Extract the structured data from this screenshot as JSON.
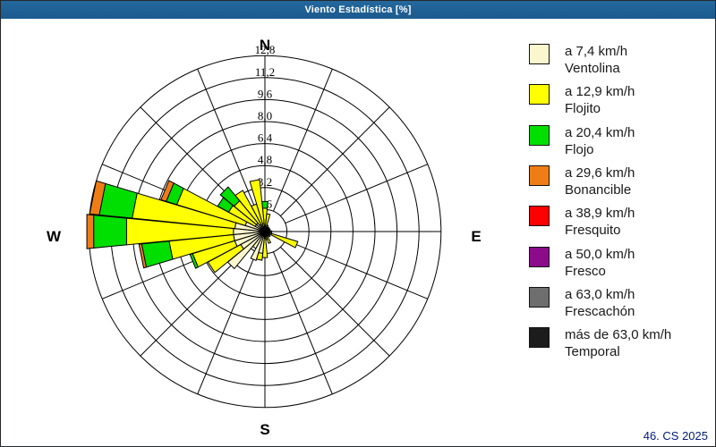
{
  "window": {
    "title": "Viento Estadística [%]",
    "footer": "46. CS 2025"
  },
  "compass": {
    "n": "N",
    "e": "E",
    "s": "S",
    "w": "W"
  },
  "legend": {
    "items": [
      {
        "speed": "a 7,4 km/h",
        "name": "Ventolina",
        "color": "#FAF7CE"
      },
      {
        "speed": "a 12,9 km/h",
        "name": "Flojito",
        "color": "#FFFF00"
      },
      {
        "speed": "a 20,4 km/h",
        "name": "Flojo",
        "color": "#00DF00"
      },
      {
        "speed": "a 29,6 km/h",
        "name": "Bonancible",
        "color": "#EF7D15"
      },
      {
        "speed": "a 38,9 km/h",
        "name": "Fresquito",
        "color": "#FF0000"
      },
      {
        "speed": "a 50,0 km/h",
        "name": "Fresco",
        "color": "#8B0B8B"
      },
      {
        "speed": "a 63,0 km/h",
        "name": "Frescachón",
        "color": "#6E6E6E"
      },
      {
        "speed": "más de 63,0 km/h",
        "name": "Temporal",
        "color": "#1C1C1C"
      }
    ]
  },
  "chart_data": {
    "type": "bar",
    "polar": true,
    "title": "Viento Estadística [%]",
    "units": "%",
    "grid": true,
    "legend_position": "right",
    "sector_width_deg": 11.25,
    "ring_values": [
      1.6,
      3.2,
      4.8,
      6.4,
      8.0,
      9.6,
      11.2,
      12.8
    ],
    "ring_labels": [
      "1,6",
      "3,2",
      "4,8",
      "6,4",
      "8,0",
      "9,6",
      "11,2",
      "12,8"
    ],
    "radial_max": 12.8,
    "grid_spokes": 16,
    "directions_deg": [
      0,
      11.25,
      22.5,
      33.75,
      45,
      56.25,
      67.5,
      78.75,
      90,
      101.25,
      112.5,
      123.75,
      135,
      146.25,
      157.5,
      168.75,
      180,
      191.25,
      202.5,
      213.75,
      225,
      236.25,
      247.5,
      258.75,
      270,
      281.25,
      292.5,
      303.75,
      315,
      326.25,
      337.5,
      348.75
    ],
    "direction_names": [
      "N",
      "NbE",
      "NNE",
      "NEbN",
      "NE",
      "NEbE",
      "ENE",
      "EbN",
      "E",
      "EbS",
      "ESE",
      "SEbE",
      "SE",
      "SEbS",
      "SSE",
      "SbE",
      "S",
      "SbW",
      "SSW",
      "SWbS",
      "SW",
      "SWbW",
      "WSW",
      "WbS",
      "W",
      "WbN",
      "WNW",
      "NWbW",
      "NW",
      "NWbN",
      "NNW",
      "NbW"
    ],
    "series": [
      {
        "name": "Ventolina",
        "speed_label": "a 7,4 km/h",
        "color": "#FAF7CE",
        "values": [
          0,
          0,
          0.2,
          0.2,
          0.2,
          0.3,
          0.4,
          0.4,
          0.3,
          0.3,
          0.5,
          0.4,
          0.3,
          0.4,
          0.4,
          0.3,
          0.5,
          1.6,
          2.2,
          1.4,
          3.5,
          2.0,
          2.3,
          2.3,
          2.3,
          2.2,
          1.5,
          0.8,
          0.8,
          0.6,
          0.5,
          0.6
        ]
      },
      {
        "name": "Flojito",
        "speed_label": "a 12,9 km/h",
        "color": "#FFFF00",
        "values": [
          1.7,
          1.3,
          0.3,
          0.2,
          0.2,
          0,
          0,
          0,
          0.2,
          0.2,
          2.0,
          0,
          0.2,
          0,
          0.5,
          0.3,
          1.4,
          0.5,
          0,
          0,
          0,
          2.7,
          3.2,
          4.7,
          7.8,
          7.5,
          5.2,
          2.2,
          2.1,
          2.8,
          1.6,
          3.2
        ]
      },
      {
        "name": "Flojo",
        "speed_label": "a 20,4 km/h",
        "color": "#00DF00",
        "values": [
          0.5,
          0,
          0,
          0,
          0,
          0,
          0,
          0,
          0,
          0,
          0,
          0,
          0,
          0,
          0,
          0,
          0,
          0,
          0,
          0,
          0,
          0,
          0.2,
          2.0,
          2.4,
          2.4,
          0.8,
          0.9,
          1.3,
          0,
          0,
          0
        ]
      },
      {
        "name": "Bonancible",
        "speed_label": "a 29,6 km/h",
        "color": "#EF7D15",
        "values": [
          0,
          0,
          0,
          0,
          0,
          0,
          0,
          0,
          0,
          0,
          0,
          0,
          0,
          0,
          0,
          0,
          0,
          0,
          0,
          0,
          0,
          0,
          0,
          0.2,
          0.5,
          0.7,
          0.4,
          0,
          0,
          0,
          0,
          0
        ]
      },
      {
        "name": "Fresquito",
        "speed_label": "a 38,9 km/h",
        "color": "#FF0000",
        "values": [
          0,
          0,
          0,
          0,
          0,
          0,
          0,
          0,
          0,
          0,
          0,
          0,
          0,
          0,
          0,
          0,
          0,
          0,
          0,
          0,
          0,
          0,
          0,
          0,
          0,
          0,
          0,
          0,
          0,
          0,
          0,
          0
        ]
      },
      {
        "name": "Fresco",
        "speed_label": "a 50,0 km/h",
        "color": "#8B0B8B",
        "values": [
          0,
          0,
          0,
          0,
          0,
          0,
          0,
          0,
          0,
          0,
          0,
          0,
          0,
          0,
          0,
          0,
          0,
          0,
          0,
          0,
          0,
          0,
          0,
          0,
          0,
          0,
          0,
          0,
          0,
          0,
          0,
          0
        ]
      },
      {
        "name": "Frescachón",
        "speed_label": "a 63,0 km/h",
        "color": "#6E6E6E",
        "values": [
          0,
          0,
          0,
          0,
          0,
          0,
          0,
          0,
          0,
          0,
          0,
          0,
          0,
          0,
          0,
          0,
          0,
          0,
          0,
          0,
          0,
          0,
          0,
          0,
          0,
          0,
          0,
          0,
          0,
          0,
          0,
          0
        ]
      },
      {
        "name": "Temporal",
        "speed_label": "más de 63,0 km/h",
        "color": "#1C1C1C",
        "values": [
          0,
          0,
          0,
          0,
          0,
          0,
          0,
          0,
          0,
          0,
          0,
          0,
          0,
          0,
          0,
          0,
          0,
          0,
          0,
          0,
          0,
          0,
          0,
          0,
          0,
          0,
          0,
          0,
          0,
          0,
          0,
          0
        ]
      }
    ]
  }
}
